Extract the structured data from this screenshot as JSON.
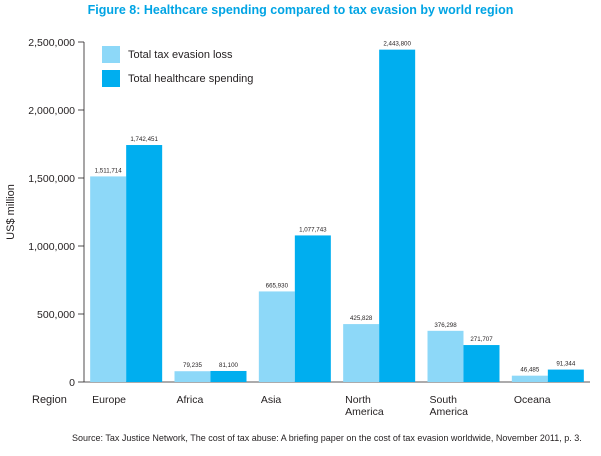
{
  "title": "Figure 8: Healthcare spending compared to tax evasion by world region",
  "source": "Source: Tax Justice Network, The cost of tax abuse: A briefing paper on the cost of tax evasion worldwide, November 2011, p. 3.",
  "chart_data": {
    "type": "bar",
    "title": "Figure 8: Healthcare spending compared to tax evasion by world region",
    "xlabel": "Region",
    "ylabel": "US$ million",
    "ylim": [
      0,
      2500000
    ],
    "yticks": [
      0,
      500000,
      1000000,
      1500000,
      2000000,
      2500000
    ],
    "ytick_labels": [
      "0",
      "500,000",
      "1,000,000",
      "1,500,000",
      "2,000,000",
      "2,500,000"
    ],
    "categories": [
      [
        "Europe"
      ],
      [
        "Africa"
      ],
      [
        "Asia"
      ],
      [
        "North",
        "America"
      ],
      [
        "South",
        "America"
      ],
      [
        "Oceana"
      ]
    ],
    "series": [
      {
        "name": "Total tax evasion loss",
        "color": "#8dd8f8",
        "values": [
          1511714,
          79235,
          665930,
          425828,
          376298,
          46485
        ],
        "labels": [
          "1,511,714",
          "79,235",
          "665,930",
          "425,828",
          "376,298",
          "46,485"
        ]
      },
      {
        "name": "Total healthcare spending",
        "color": "#00aeef",
        "values": [
          1742451,
          81100,
          1077743,
          2443800,
          271707,
          91344
        ],
        "labels": [
          "1,742,451",
          "81,100",
          "1,077,743",
          "2,443,800",
          "271,707",
          "91,344"
        ]
      }
    ],
    "legend_position": "top-left",
    "grid": false
  }
}
